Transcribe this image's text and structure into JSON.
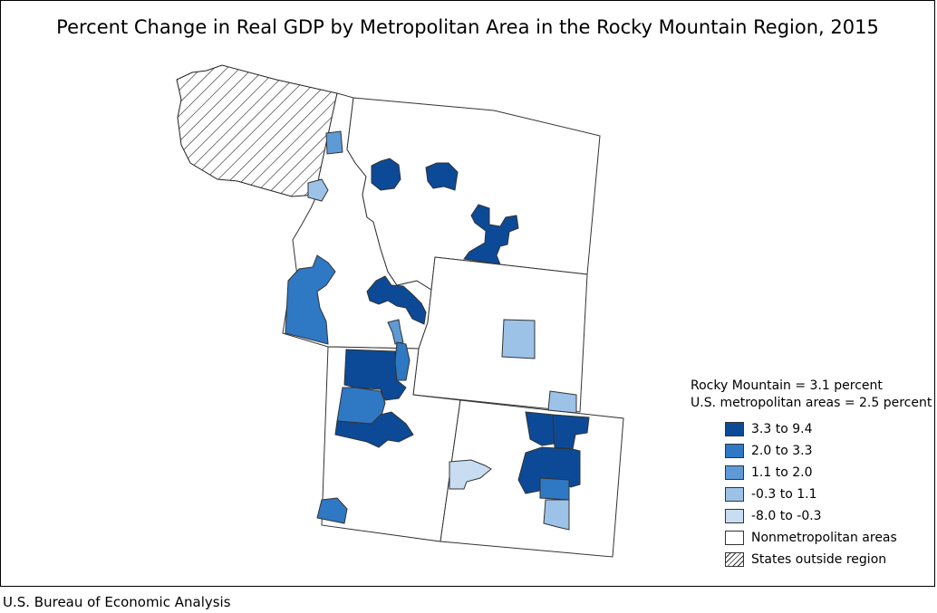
{
  "title": "Percent Change in Real GDP by Metropolitan Area in the Rocky Mountain Region, 2015",
  "source": "U.S. Bureau of Economic Analysis",
  "legend": {
    "summary": [
      "Rocky Mountain = 3.1 percent",
      "U.S. metropolitan areas = 2.5 percent"
    ],
    "items": [
      {
        "label": "3.3 to 9.4",
        "color": "#0c4a97"
      },
      {
        "label": "2.0 to 3.3",
        "color": "#2f78c3"
      },
      {
        "label": "1.1 to 2.0",
        "color": "#5e9ad6"
      },
      {
        "label": "-0.3 to 1.1",
        "color": "#9cc2e8"
      },
      {
        "label": "-8.0 to -0.3",
        "color": "#c8dcf2"
      },
      {
        "label": "Nonmetropolitan areas",
        "color": "#ffffff"
      },
      {
        "label": "States outside region",
        "color": "hatch"
      }
    ]
  },
  "map": {
    "metros": [
      {
        "state": "Idaho",
        "category": "1.1 to 2.0"
      },
      {
        "state": "Idaho",
        "category": "-0.3 to 1.1"
      },
      {
        "state": "Idaho",
        "category": "2.0 to 3.3"
      },
      {
        "state": "Idaho",
        "category": "3.3 to 9.4"
      },
      {
        "state": "Montana",
        "category": "3.3 to 9.4"
      },
      {
        "state": "Montana",
        "category": "3.3 to 9.4"
      },
      {
        "state": "Montana",
        "category": "3.3 to 9.4"
      },
      {
        "state": "Wyoming",
        "category": "-0.3 to 1.1"
      },
      {
        "state": "Wyoming",
        "category": "-0.3 to 1.1"
      },
      {
        "state": "Utah",
        "category": "3.3 to 9.4"
      },
      {
        "state": "Utah",
        "category": "2.0 to 3.3"
      },
      {
        "state": "Utah",
        "category": "3.3 to 9.4"
      },
      {
        "state": "Utah",
        "category": "2.0 to 3.3"
      },
      {
        "state": "Colorado",
        "category": "3.3 to 9.4"
      },
      {
        "state": "Colorado",
        "category": "2.0 to 3.3"
      },
      {
        "state": "Colorado",
        "category": "-0.3 to 1.1"
      },
      {
        "state": "Colorado",
        "category": "-8.0 to -0.3"
      }
    ]
  }
}
